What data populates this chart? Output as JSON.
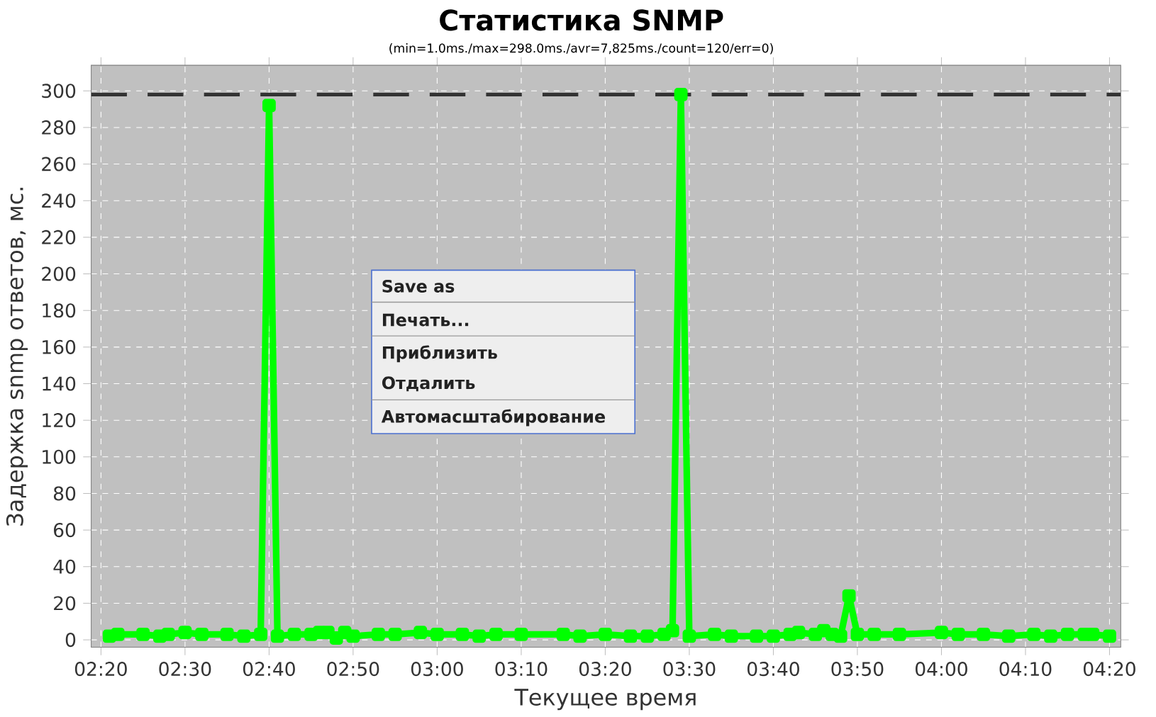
{
  "chart_data": {
    "type": "line",
    "title": "Статистика SNMP",
    "subtitle": "(min=1.0ms./max=298.0ms./avr=7,825ms./count=120/err=0)",
    "xlabel": "Текущее время",
    "ylabel": "Задержка snmp ответов, мс.",
    "x": [
      2.35,
      2.3667,
      2.4167,
      2.45,
      2.4667,
      2.5,
      2.5333,
      2.5833,
      2.6167,
      2.65,
      2.6667,
      2.6833,
      2.7167,
      2.75,
      2.7667,
      2.7833,
      2.8,
      2.8167,
      2.8333,
      2.8833,
      2.9167,
      2.9667,
      3,
      3.05,
      3.0833,
      3.1167,
      3.1667,
      3.25,
      3.2833,
      3.3333,
      3.3833,
      3.4167,
      3.45,
      3.4667,
      3.4833,
      3.5,
      3.55,
      3.5833,
      3.6333,
      3.6667,
      3.7,
      3.7167,
      3.75,
      3.7667,
      3.7833,
      3.8,
      3.8167,
      3.8333,
      3.8667,
      3.9167,
      4,
      4.0333,
      4.0833,
      4.1333,
      4.1833,
      4.2167,
      4.25,
      4.2833,
      4.3,
      4.3333
    ],
    "series": [
      {
        "color": "#00ff00",
        "values": [
          2,
          3,
          3,
          2,
          3,
          4,
          3,
          3,
          2,
          3,
          292,
          2,
          3,
          3,
          4,
          4,
          1,
          4,
          2,
          3,
          3,
          4,
          3,
          3,
          2,
          3,
          3,
          3,
          2,
          3,
          2,
          2,
          3,
          5,
          298,
          2,
          3,
          2,
          2,
          2,
          3,
          4,
          3,
          5,
          3,
          2,
          24,
          3,
          3,
          3,
          4,
          3,
          3,
          2,
          3,
          2,
          3,
          3,
          3,
          2
        ]
      }
    ],
    "xlim": [
      2.3139,
      4.3556
    ],
    "ylim": [
      -4,
      314
    ],
    "xticks": [
      {
        "value": 2.3333,
        "label": "02:20"
      },
      {
        "value": 2.5,
        "label": "02:30"
      },
      {
        "value": 2.6667,
        "label": "02:40"
      },
      {
        "value": 2.8333,
        "label": "02:50"
      },
      {
        "value": 3,
        "label": "03:00"
      },
      {
        "value": 3.1667,
        "label": "03:10"
      },
      {
        "value": 3.3333,
        "label": "03:20"
      },
      {
        "value": 3.5,
        "label": "03:30"
      },
      {
        "value": 3.6667,
        "label": "03:40"
      },
      {
        "value": 3.8333,
        "label": "03:50"
      },
      {
        "value": 4,
        "label": "04:00"
      },
      {
        "value": 4.1667,
        "label": "04:10"
      },
      {
        "value": 4.3333,
        "label": "04:20"
      }
    ],
    "yticks": [
      0,
      20,
      40,
      60,
      80,
      100,
      120,
      140,
      160,
      180,
      200,
      220,
      240,
      260,
      280,
      300
    ],
    "ref_lines": [
      {
        "axis": "y",
        "value": 298,
        "color": "#333333",
        "line_style": "dashed"
      }
    ],
    "grid": true,
    "marker": "square",
    "line_style": "solid",
    "annotations": [
      "Save as",
      "Печать...",
      "Приблизить",
      "Отдалить",
      "Автомасштабирование"
    ]
  }
}
